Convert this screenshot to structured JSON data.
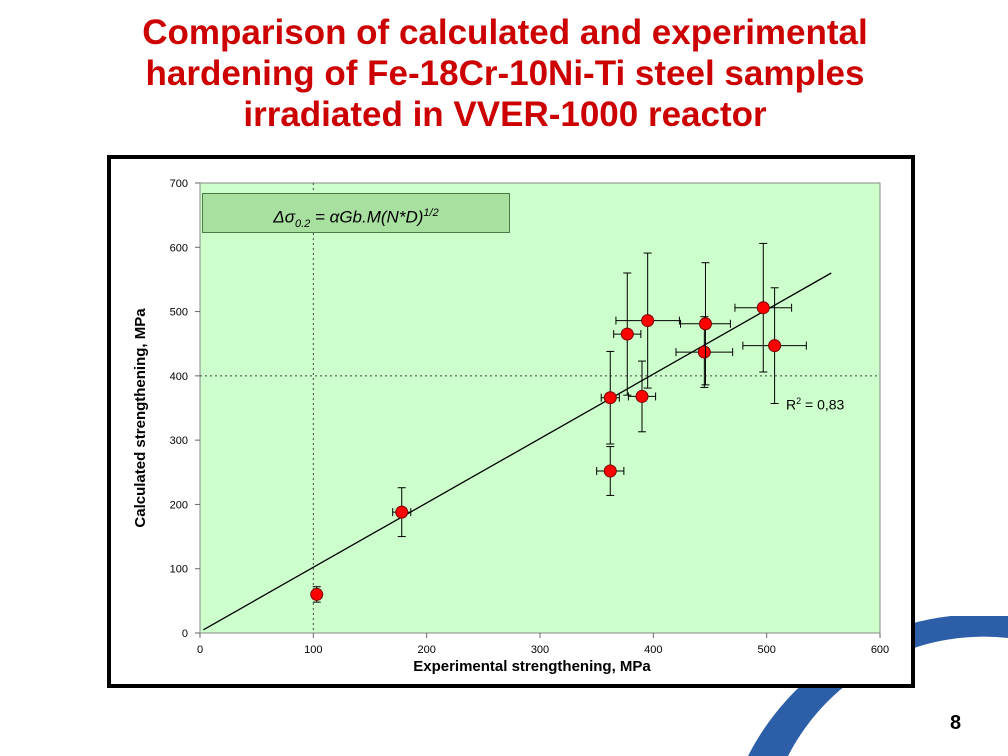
{
  "slide": {
    "title_lines": [
      "Comparison of calculated and experimental",
      "hardening of Fe-18Cr-10Ni-Ti steel samples",
      "irradiated in VVER-1000 reactor"
    ],
    "page_number": "8",
    "colors": {
      "title": "#cc0000",
      "plot_bg": "#ccffcc",
      "marker": "#ff0000",
      "formula_bg": "#a8e0a0",
      "deco_blue": "#2d5fa8"
    }
  },
  "chart_data": {
    "type": "scatter",
    "xlabel": "Experimental strengthening, MPa",
    "ylabel": "Calculated strengthening, MPa",
    "xlim": [
      0,
      600
    ],
    "ylim": [
      0,
      700
    ],
    "xticks": [
      0,
      100,
      200,
      300,
      400,
      500,
      600
    ],
    "yticks": [
      0,
      100,
      200,
      300,
      400,
      500,
      600,
      700
    ],
    "grid": false,
    "reference_lines": {
      "x": 100,
      "y": 400
    },
    "formula": {
      "lhs": "Δσ",
      "sub": "0.2",
      "rhs": " = αGb.M(N*D)",
      "sup": "1/2"
    },
    "r_squared": {
      "prefix": "R",
      "sup": "2",
      "suffix": " = 0,83"
    },
    "trendline": {
      "x": [
        3,
        557
      ],
      "y": [
        5,
        560
      ]
    },
    "points": [
      {
        "x": 103,
        "y": 60,
        "xerr": 2,
        "yerr": 12
      },
      {
        "x": 178,
        "y": 188,
        "xerr": 8,
        "yerr": 38
      },
      {
        "x": 362,
        "y": 252,
        "xerr": 12,
        "yerr": 38
      },
      {
        "x": 362,
        "y": 366,
        "xerr": 8,
        "yerr": 72
      },
      {
        "x": 377,
        "y": 465,
        "xerr": 12,
        "yerr": 95
      },
      {
        "x": 390,
        "y": 368,
        "xerr": 12,
        "yerr": 55
      },
      {
        "x": 395,
        "y": 486,
        "xerr": 28,
        "yerr": 105
      },
      {
        "x": 445,
        "y": 437,
        "xerr": 25,
        "yerr": 55
      },
      {
        "x": 446,
        "y": 481,
        "xerr": 22,
        "yerr": 95
      },
      {
        "x": 497,
        "y": 506,
        "xerr": 25,
        "yerr": 100
      },
      {
        "x": 507,
        "y": 447,
        "xerr": 28,
        "yerr": 90
      }
    ]
  }
}
